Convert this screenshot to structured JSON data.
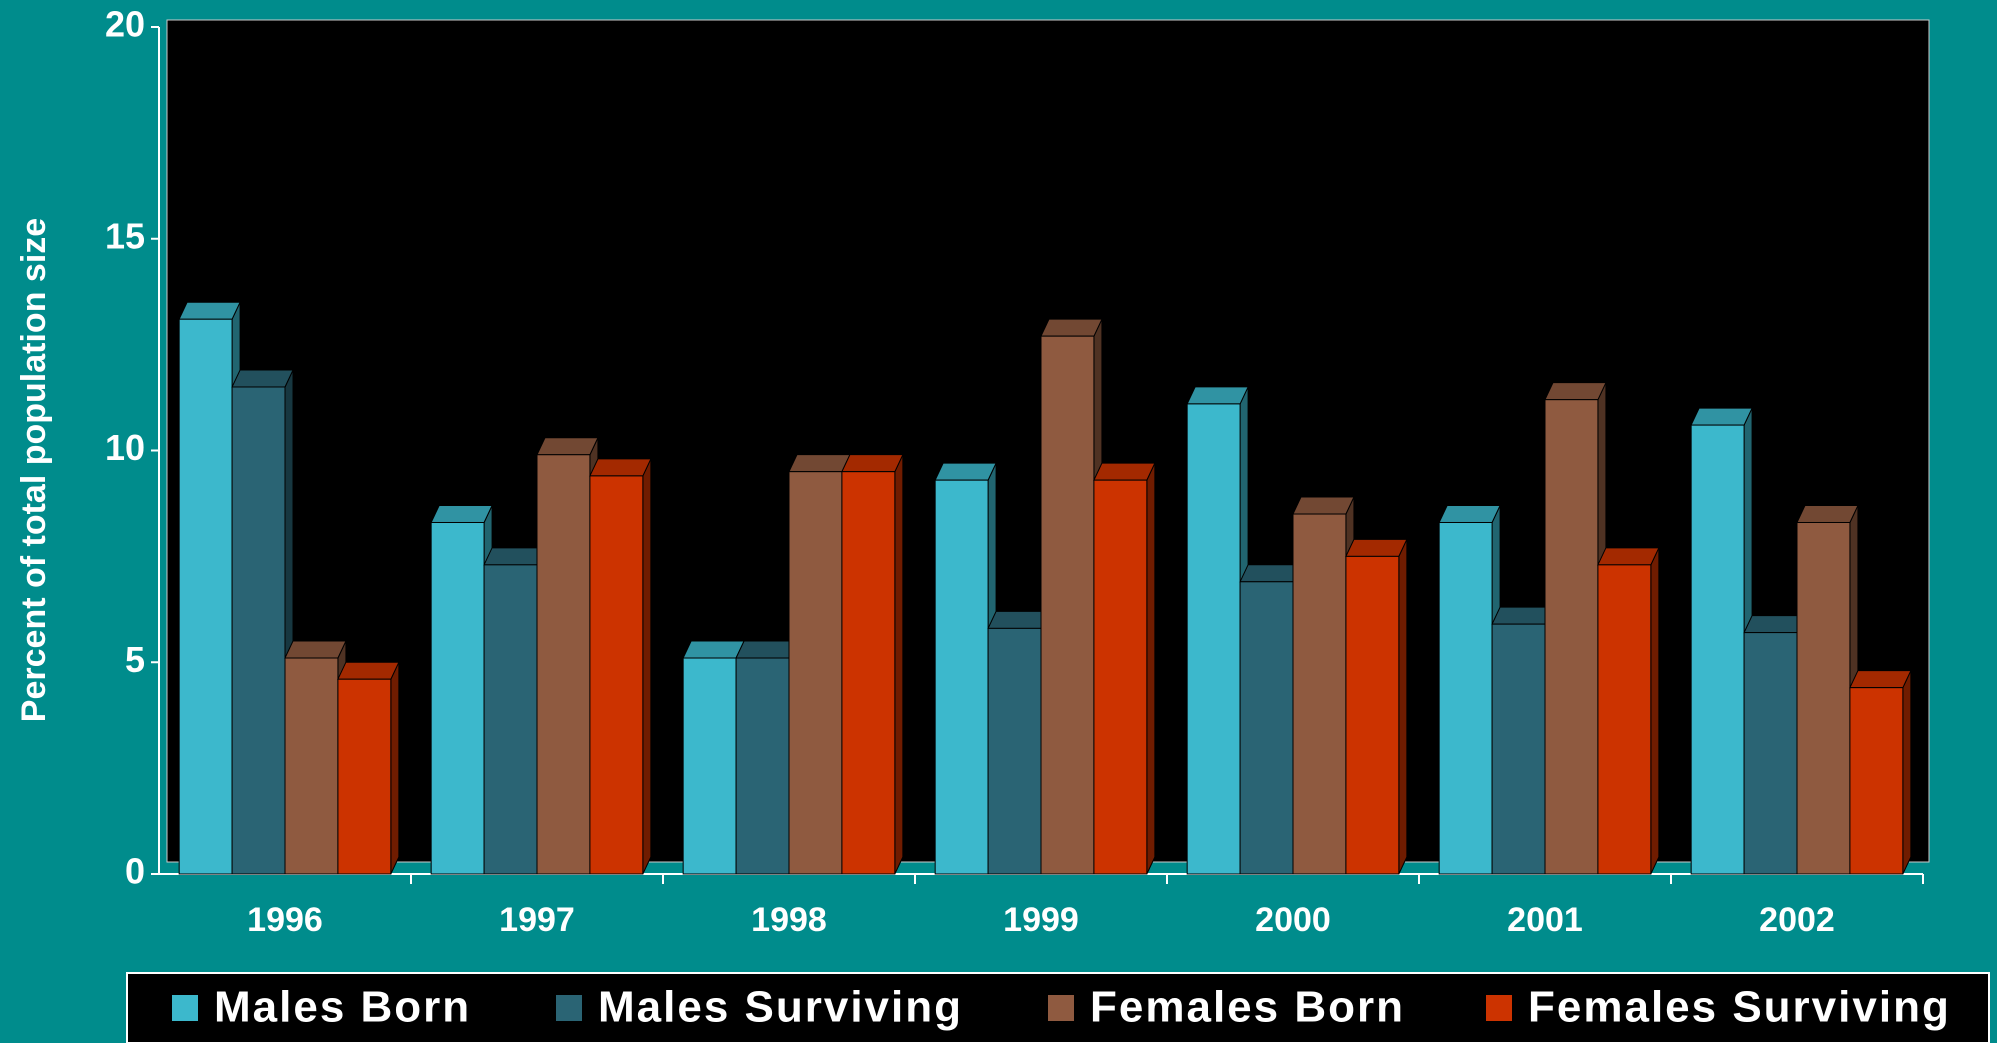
{
  "chart_data": {
    "type": "bar",
    "y_label": "Percent of total population size",
    "categories": [
      "1996",
      "1997",
      "1998",
      "1999",
      "2000",
      "2001",
      "2002"
    ],
    "series": [
      {
        "name": "Males Born",
        "color": "#3cb8cc",
        "values": [
          13.1,
          8.3,
          5.1,
          9.3,
          11.1,
          8.3,
          10.6
        ]
      },
      {
        "name": "Males Surviving",
        "color": "#2a6474",
        "values": [
          11.5,
          7.3,
          5.1,
          5.8,
          6.9,
          5.9,
          5.7
        ]
      },
      {
        "name": "Females Born",
        "color": "#8f5a40",
        "values": [
          5.1,
          9.9,
          9.5,
          12.7,
          8.5,
          11.2,
          8.3
        ]
      },
      {
        "name": "Females Surviving",
        "color": "#cc3300",
        "values": [
          4.6,
          9.4,
          9.5,
          9.3,
          7.5,
          7.3,
          4.4
        ]
      }
    ],
    "ylim": [
      0,
      20
    ],
    "yticks": [
      0,
      5,
      10,
      15,
      20
    ],
    "legend": "bottom"
  }
}
